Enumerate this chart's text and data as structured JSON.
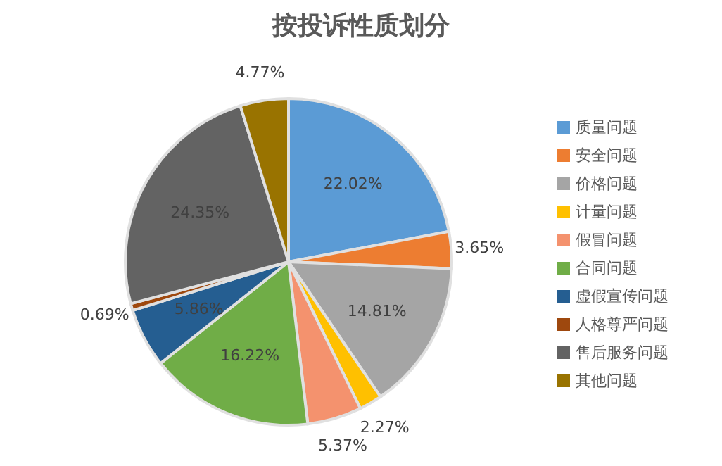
{
  "chart_data": {
    "type": "pie",
    "title": "按投诉性质划分",
    "categories": [
      "质量问题",
      "安全问题",
      "价格问题",
      "计量问题",
      "假冒问题",
      "合同问题",
      "虚假宣传问题",
      "人格尊严问题",
      "售后服务问题",
      "其他问题"
    ],
    "values": [
      22.02,
      3.65,
      14.81,
      2.27,
      5.37,
      16.22,
      5.86,
      0.69,
      24.35,
      4.77
    ],
    "value_labels": [
      "22.02%",
      "3.65%",
      "14.81%",
      "2.27%",
      "5.37%",
      "16.22%",
      "5.86%",
      "0.69%",
      "24.35%",
      "4.77%"
    ],
    "colors": [
      "#5b9bd5",
      "#ed7d31",
      "#a5a5a5",
      "#ffc000",
      "#f4926e",
      "#70ad47",
      "#255e91",
      "#9e480e",
      "#636363",
      "#997300"
    ],
    "legend": "right"
  }
}
